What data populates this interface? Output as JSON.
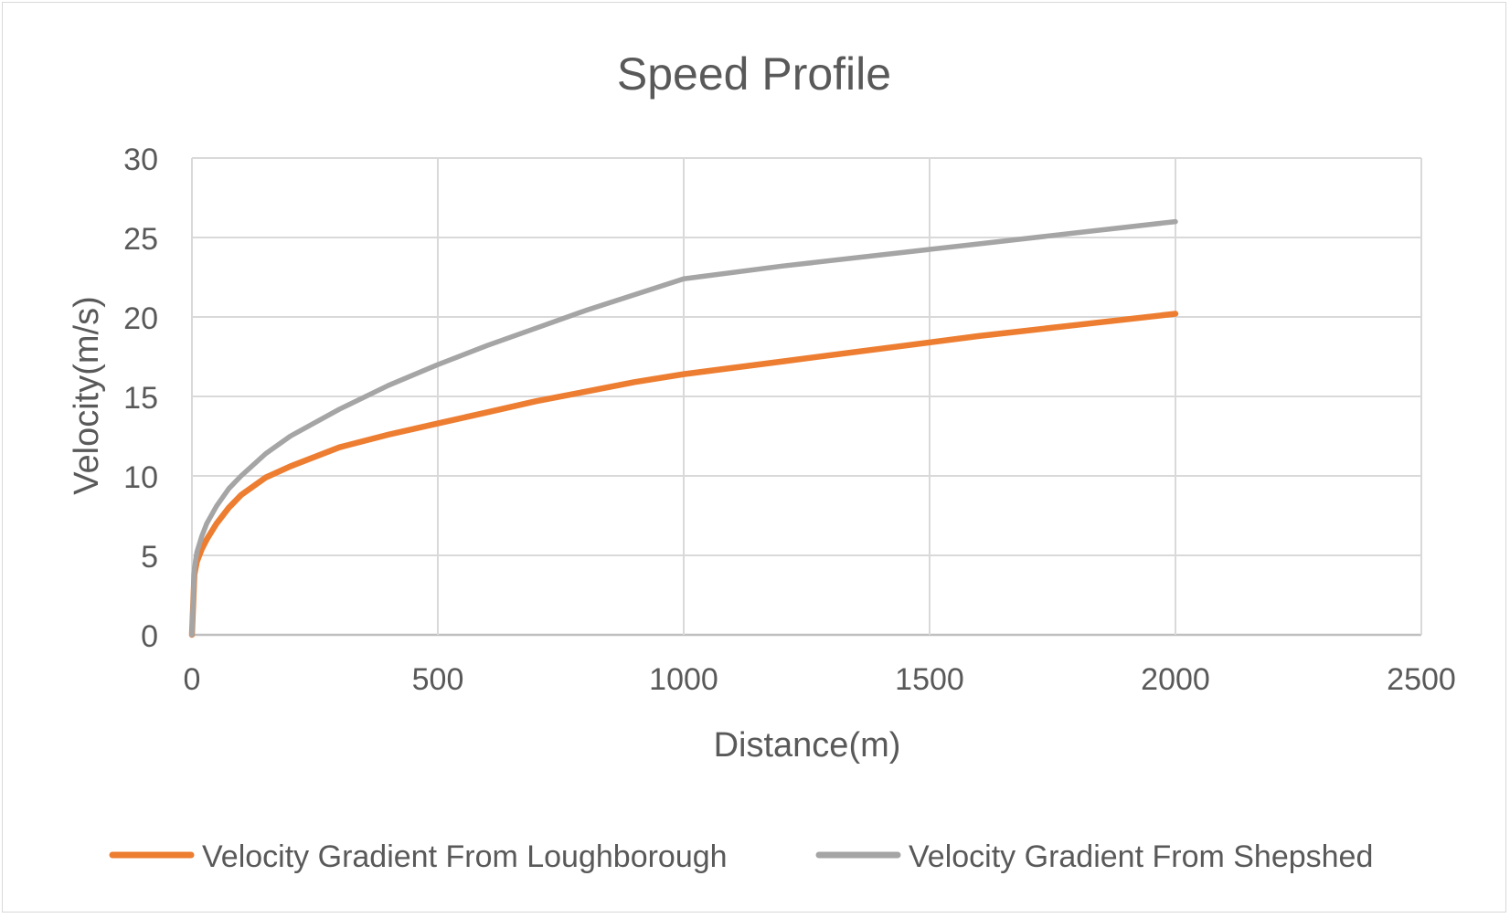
{
  "chart_data": {
    "type": "line",
    "title": "Speed Profile",
    "xlabel": "Distance(m)",
    "ylabel": "Velocity(m/s)",
    "xlim": [
      0,
      2500
    ],
    "ylim": [
      0,
      30
    ],
    "x_ticks": [
      0,
      500,
      1000,
      1500,
      2000,
      2500
    ],
    "y_ticks": [
      0,
      5,
      10,
      15,
      20,
      25,
      30
    ],
    "grid": true,
    "legend_position": "bottom",
    "series": [
      {
        "name": "Velocity Gradient From Loughborough",
        "color": "#ed7d31",
        "x": [
          0,
          5,
          10,
          20,
          30,
          50,
          75,
          100,
          150,
          200,
          300,
          400,
          500,
          600,
          700,
          800,
          900,
          1000,
          1200,
          1400,
          1600,
          1800,
          2000
        ],
        "y": [
          0,
          3.8,
          4.6,
          5.4,
          6.0,
          7.0,
          8.0,
          8.8,
          9.9,
          10.6,
          11.8,
          12.6,
          13.3,
          14.0,
          14.7,
          15.3,
          15.9,
          16.4,
          17.2,
          18.0,
          18.8,
          19.5,
          20.2
        ]
      },
      {
        "name": "Velocity Gradient From Shepshed",
        "color": "#a5a5a5",
        "x": [
          0,
          5,
          10,
          20,
          30,
          50,
          75,
          100,
          150,
          200,
          300,
          400,
          500,
          600,
          700,
          800,
          900,
          1000,
          1200,
          1400,
          1600,
          1800,
          2000
        ],
        "y": [
          0,
          4.2,
          5.2,
          6.2,
          7.0,
          8.1,
          9.2,
          10.0,
          11.4,
          12.5,
          14.2,
          15.7,
          17.0,
          18.2,
          19.3,
          20.4,
          21.4,
          22.4,
          23.2,
          23.9,
          24.6,
          25.3,
          26.0
        ]
      }
    ]
  }
}
